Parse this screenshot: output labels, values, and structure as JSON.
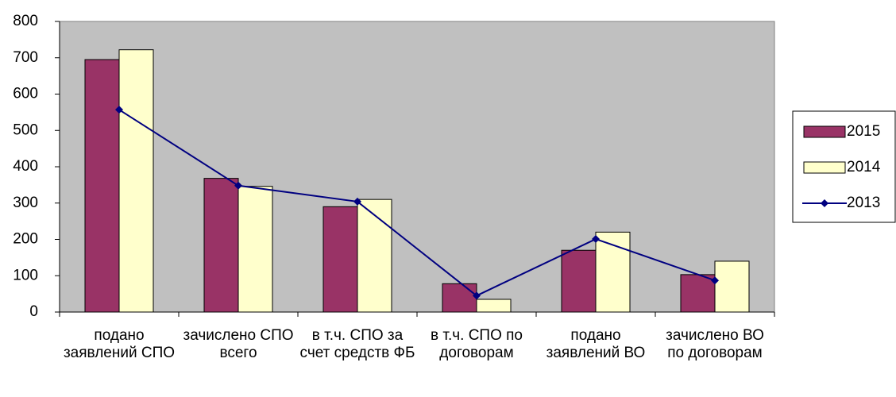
{
  "chart_data": {
    "type": "bar",
    "categories": [
      "подано заявлений СПО",
      "зачислено СПО всего",
      "в т.ч. СПО за счет средств ФБ",
      "в т.ч. СПО по договорам",
      "подано заявлений ВО",
      "зачислено ВО по договорам"
    ],
    "series": [
      {
        "name": "2015",
        "type": "bar",
        "color": "#993366",
        "values": [
          695,
          368,
          290,
          78,
          170,
          103
        ]
      },
      {
        "name": "2014",
        "type": "bar",
        "color": "#ffffcc",
        "values": [
          722,
          346,
          310,
          35,
          220,
          140
        ]
      },
      {
        "name": "2013",
        "type": "line",
        "color": "#000080",
        "values": [
          557,
          348,
          304,
          45,
          201,
          87
        ]
      }
    ],
    "ylim": [
      0,
      800
    ],
    "yticks": [
      0,
      100,
      200,
      300,
      400,
      500,
      600,
      700,
      800
    ],
    "plot_background": "#c0c0c0",
    "legend": "right"
  }
}
